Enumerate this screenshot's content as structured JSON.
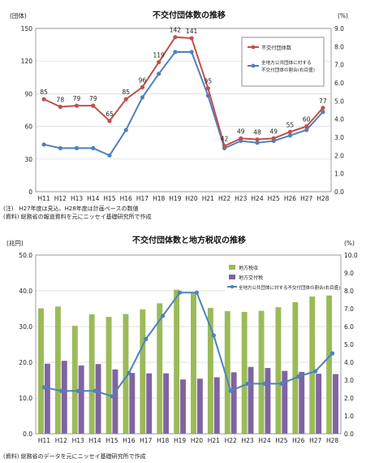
{
  "notes": {
    "chart1_note": "(注)　H27年度は見込、H28年度は計画ベースの数値",
    "chart1_source": "(資料) 総務省の報道資料を元にニッセイ基礎研究所で作成",
    "chart2_source": "(資料) 総務省のデータを元にニッセイ基礎研究所で作成"
  },
  "chart_data": [
    {
      "type": "line",
      "title": "不交付団体数の推移",
      "left_unit": "(団体)",
      "right_unit": "(%)",
      "categories": [
        "H11",
        "H12",
        "H13",
        "H14",
        "H15",
        "H16",
        "H17",
        "H18",
        "H19",
        "H20",
        "H21",
        "H22",
        "H23",
        "H24",
        "H25",
        "H26",
        "H27",
        "H28"
      ],
      "left_ticks": [
        "0",
        "30",
        "60",
        "90",
        "120",
        "150"
      ],
      "right_ticks": [
        "0.0",
        "1.0",
        "2.0",
        "3.0",
        "4.0",
        "5.0",
        "6.0",
        "7.0",
        "8.0",
        "9.0"
      ],
      "ylim": [
        0,
        150
      ],
      "y2lim": [
        0,
        9
      ],
      "series": [
        {
          "name": "不交付団体数",
          "axis": "left",
          "color": "#c0504d",
          "values": [
            85,
            78,
            79,
            79,
            65,
            85,
            96,
            119,
            142,
            141,
            95,
            42,
            49,
            48,
            49,
            55,
            60,
            77
          ],
          "labels": [
            "85",
            "78",
            "79",
            "79",
            "65",
            "85",
            "96",
            "119",
            "142",
            "141",
            "95",
            "42",
            "49",
            "48",
            "49",
            "55",
            "60",
            "77"
          ]
        },
        {
          "name": "全地方公共団体に対する不交付団体の割合(右目盛)",
          "name_lines": [
            "全地方公共団体に対する",
            "不交付団体の割合(右目盛)"
          ],
          "axis": "right",
          "color": "#4f81bd",
          "values": [
            2.6,
            2.4,
            2.4,
            2.4,
            2.0,
            3.4,
            5.2,
            6.5,
            7.7,
            7.7,
            5.3,
            2.4,
            2.8,
            2.7,
            2.8,
            3.1,
            3.4,
            4.4
          ]
        }
      ],
      "legend_position": "top-right"
    },
    {
      "type": "bar",
      "title": "不交付団体数と地方税収の推移",
      "left_unit": "(兆円)",
      "right_unit": "(%)",
      "categories": [
        "H11",
        "H12",
        "H13",
        "H14",
        "H15",
        "H16",
        "H17",
        "H18",
        "H19",
        "H20",
        "H21",
        "H22",
        "H23",
        "H24",
        "H25",
        "H26",
        "H27",
        "H28"
      ],
      "left_ticks": [
        "0.0",
        "10.0",
        "20.0",
        "30.0",
        "40.0",
        "50.0"
      ],
      "right_ticks": [
        "0.0",
        "1.0",
        "2.0",
        "3.0",
        "4.0",
        "5.0",
        "6.0",
        "7.0",
        "8.0",
        "9.0",
        "10.0"
      ],
      "ylim": [
        0,
        50
      ],
      "y2lim": [
        0,
        10
      ],
      "series": [
        {
          "name": "地方税収",
          "kind": "bar",
          "color": "#9bbb59",
          "values": [
            35.1,
            35.6,
            30.2,
            33.4,
            32.7,
            33.5,
            34.8,
            36.5,
            40.3,
            39.5,
            35.2,
            34.3,
            34.1,
            34.4,
            35.4,
            36.8,
            38.4,
            38.7
          ]
        },
        {
          "name": "地方交付税",
          "kind": "bar",
          "color": "#8064a2",
          "values": [
            19.6,
            20.4,
            19.1,
            19.5,
            18.0,
            17.0,
            16.9,
            16.9,
            15.2,
            15.4,
            15.8,
            17.2,
            18.7,
            18.4,
            17.6,
            17.3,
            16.8,
            16.7
          ]
        },
        {
          "name": "全地方公共団体に対する不交付団体の割合(右目盛)",
          "kind": "line",
          "axis": "right",
          "color": "#4f81bd",
          "values": [
            2.6,
            2.4,
            2.4,
            2.4,
            2.1,
            3.4,
            5.3,
            6.6,
            7.9,
            7.9,
            5.5,
            2.4,
            2.8,
            2.8,
            2.8,
            3.2,
            3.5,
            4.5
          ]
        }
      ],
      "legend_position": "top-right"
    }
  ]
}
